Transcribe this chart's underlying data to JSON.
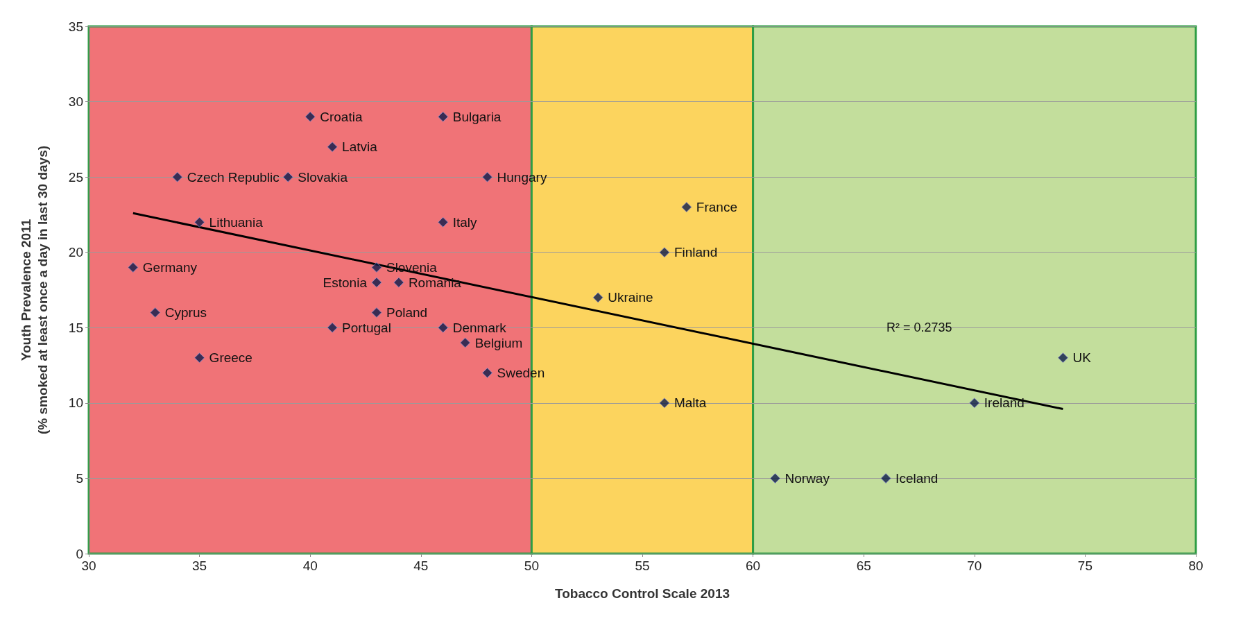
{
  "chart_data": {
    "type": "scatter",
    "xlabel": "Tobacco Control Scale 2013",
    "ylabel": "Youth Prevalence 2011\n(% smoked at least once a day in last 30 days)",
    "xlim": [
      30,
      80
    ],
    "xticks": [
      30,
      35,
      40,
      45,
      50,
      55,
      60,
      65,
      70,
      75,
      80
    ],
    "ylim": [
      0,
      35
    ],
    "yticks": [
      0,
      5,
      10,
      15,
      20,
      25,
      30,
      35
    ],
    "grid": "y",
    "marker": "diamond",
    "series": [
      {
        "color": "#0d1a4a",
        "x": [
          40,
          46,
          41,
          34,
          39,
          48,
          57,
          35,
          46,
          56,
          32,
          43,
          43,
          44,
          53,
          33,
          43,
          41,
          46,
          47,
          35,
          74,
          48,
          56,
          70,
          61,
          66
        ],
        "values": [
          29,
          29,
          27,
          25,
          25,
          25,
          23,
          22,
          22,
          20,
          19,
          19,
          18,
          18,
          17,
          16,
          16,
          15,
          15,
          14,
          13,
          13,
          12,
          10,
          10,
          5,
          5
        ]
      },
      {
        "type": "line",
        "marker": "none",
        "color": "#000000",
        "x": [
          32,
          74
        ],
        "values": [
          22.6,
          9.6
        ]
      }
    ],
    "bands": [
      {
        "axis": "x",
        "from": 30,
        "to": 50,
        "color": "#f07377"
      },
      {
        "axis": "x",
        "from": 50,
        "to": 60,
        "color": "#fcd45e"
      },
      {
        "axis": "x",
        "from": 60,
        "to": 80,
        "color": "#c3de9c"
      }
    ],
    "annotations": [
      {
        "text": "Croatia",
        "x": 40,
        "y": 29
      },
      {
        "text": "Bulgaria",
        "x": 46,
        "y": 29
      },
      {
        "text": "Latvia",
        "x": 41,
        "y": 27
      },
      {
        "text": "Czech Republic",
        "x": 34,
        "y": 25
      },
      {
        "text": "Slovakia",
        "x": 39,
        "y": 25
      },
      {
        "text": "Hungary",
        "x": 48,
        "y": 25
      },
      {
        "text": "France",
        "x": 57,
        "y": 23
      },
      {
        "text": "Lithuania",
        "x": 35,
        "y": 22
      },
      {
        "text": "Italy",
        "x": 46,
        "y": 22
      },
      {
        "text": "Finland",
        "x": 56,
        "y": 20
      },
      {
        "text": "Germany",
        "x": 32,
        "y": 19
      },
      {
        "text": "Slovenia",
        "x": 43,
        "y": 19
      },
      {
        "text": "Estonia",
        "x": 43,
        "y": 18
      },
      {
        "text": "Romania",
        "x": 44,
        "y": 18
      },
      {
        "text": "Ukraine",
        "x": 53,
        "y": 17
      },
      {
        "text": "Cyprus",
        "x": 33,
        "y": 16
      },
      {
        "text": "Poland",
        "x": 43,
        "y": 16
      },
      {
        "text": "Portugal",
        "x": 41,
        "y": 15
      },
      {
        "text": "Denmark",
        "x": 46,
        "y": 15
      },
      {
        "text": "Belgium",
        "x": 47,
        "y": 14
      },
      {
        "text": "Greece",
        "x": 35,
        "y": 13
      },
      {
        "text": "UK",
        "x": 74,
        "y": 13
      },
      {
        "text": "Sweden",
        "x": 48,
        "y": 12
      },
      {
        "text": "Malta",
        "x": 56,
        "y": 10
      },
      {
        "text": "Ireland",
        "x": 70,
        "y": 10
      },
      {
        "text": "Norway",
        "x": 61,
        "y": 5
      },
      {
        "text": "Iceland",
        "x": 66,
        "y": 5
      },
      "R² = 0.2735"
    ]
  }
}
